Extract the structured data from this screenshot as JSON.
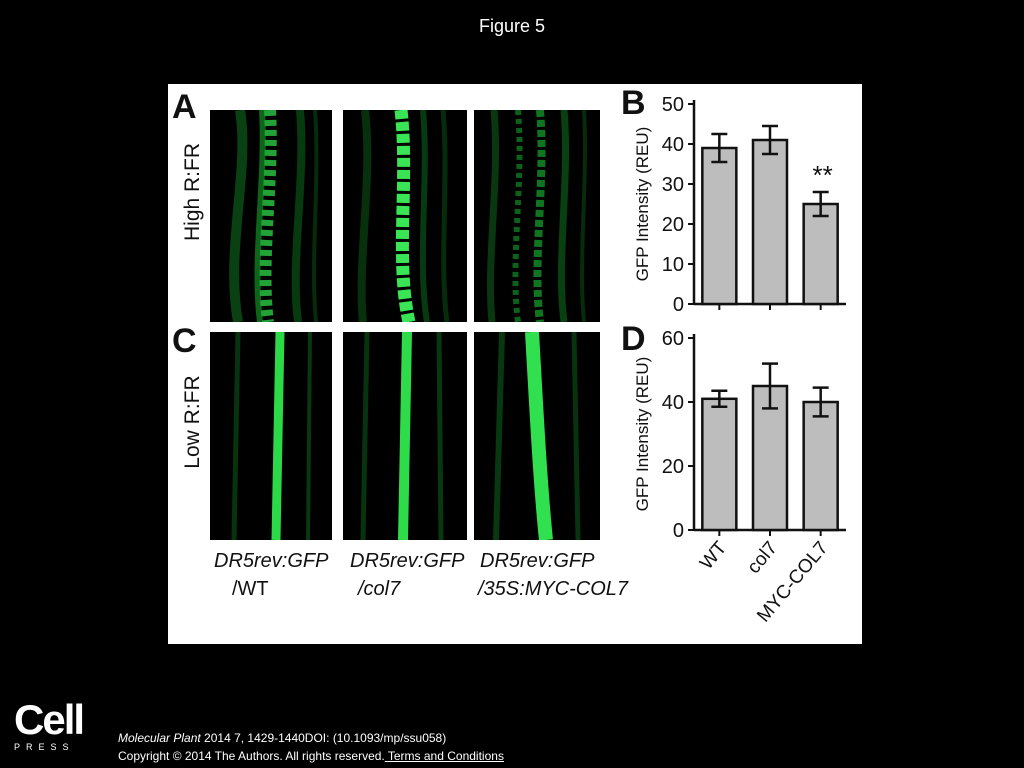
{
  "figure_title": "Figure 5",
  "panel_labels": {
    "a": "A",
    "b": "B",
    "c": "C",
    "d": "D"
  },
  "row_labels": {
    "high": "High R:FR",
    "low": "Low R:FR"
  },
  "captions": [
    {
      "line1": "DR5rev:GFP",
      "line2": "/WT"
    },
    {
      "line1": "DR5rev:GFP",
      "line2": "/col7"
    },
    {
      "line1": "DR5rev:GFP",
      "line2": "/35S:MYC-COL7"
    }
  ],
  "chart_data": [
    {
      "type": "bar",
      "panel": "B",
      "categories": [
        "WT",
        "col7",
        "MYC-COL7"
      ],
      "values": [
        39,
        41,
        25
      ],
      "errors": [
        3.5,
        3.5,
        3
      ],
      "annotations": [
        {
          "category": "MYC-COL7",
          "text": "**"
        }
      ],
      "ylabel": "GFP Intensity (REU)",
      "ylim": [
        0,
        50
      ],
      "yticks": [
        0,
        10,
        20,
        30,
        40,
        50
      ],
      "bar_color": "#bdbdbd"
    },
    {
      "type": "bar",
      "panel": "D",
      "categories": [
        "WT",
        "col7",
        "MYC-COL7"
      ],
      "values": [
        41,
        45,
        40
      ],
      "errors": [
        2.5,
        7,
        4.5
      ],
      "ylabel": "GFP Intensity (REU)",
      "ylim": [
        0,
        60
      ],
      "yticks": [
        0,
        20,
        40,
        60
      ],
      "bar_color": "#bdbdbd"
    }
  ],
  "footer": {
    "logo": "Cell",
    "logo_sub": "PRESS",
    "journal": "Molecular Plant",
    "citation_rest": " 2014 7, 1429-1440DOI: (10.1093/mp/ssu058)",
    "copyright": "Copyright © 2014 The Authors. All rights reserved.",
    "link": " Terms and Conditions"
  }
}
